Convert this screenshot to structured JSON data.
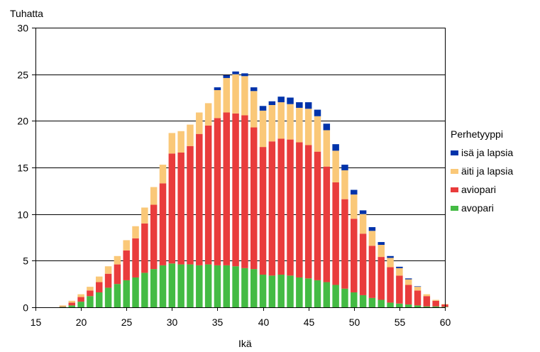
{
  "chart_data": {
    "type": "bar",
    "stacked": true,
    "ylabel": "Tuhatta",
    "xlabel": "Ikä",
    "ylim": [
      0,
      30
    ],
    "xlim": [
      15,
      60
    ],
    "yticks": [
      "0",
      "5",
      "10",
      "15",
      "20",
      "25",
      "30"
    ],
    "xticks": [
      "15",
      "20",
      "25",
      "30",
      "35",
      "40",
      "45",
      "50",
      "55",
      "60"
    ],
    "grid": true,
    "legend_position": "right",
    "legend_title": "Perhetyyppi",
    "x": [
      18,
      19,
      20,
      21,
      22,
      23,
      24,
      25,
      26,
      27,
      28,
      29,
      30,
      31,
      32,
      33,
      34,
      35,
      36,
      37,
      38,
      39,
      40,
      41,
      42,
      43,
      44,
      45,
      46,
      47,
      48,
      49,
      50,
      51,
      52,
      53,
      54,
      55,
      56,
      57,
      58,
      59,
      60
    ],
    "series": [
      {
        "name": "avopari",
        "color": "#44bb44",
        "values": [
          0.05,
          0.2,
          0.6,
          1.2,
          1.6,
          2.1,
          2.5,
          2.9,
          3.2,
          3.7,
          4.1,
          4.5,
          4.7,
          4.6,
          4.6,
          4.5,
          4.6,
          4.5,
          4.5,
          4.4,
          4.2,
          4.1,
          3.5,
          3.4,
          3.5,
          3.4,
          3.2,
          3.1,
          2.9,
          2.7,
          2.4,
          2.0,
          1.6,
          1.3,
          1.0,
          0.8,
          0.5,
          0.4,
          0.3,
          0.2,
          0.1,
          0.1,
          0.05
        ]
      },
      {
        "name": "aviopari",
        "color": "#e93c3c",
        "values": [
          0.05,
          0.3,
          0.5,
          0.6,
          1.1,
          1.5,
          2.1,
          3.2,
          4.2,
          5.3,
          6.9,
          8.8,
          11.8,
          12.0,
          12.7,
          14.1,
          14.9,
          15.8,
          16.4,
          16.4,
          16.4,
          15.2,
          13.7,
          14.4,
          14.6,
          14.6,
          14.5,
          14.3,
          13.8,
          12.4,
          11.0,
          9.6,
          7.9,
          6.6,
          5.6,
          4.6,
          3.8,
          3.0,
          2.1,
          1.6,
          1.1,
          0.6,
          0.25
        ]
      },
      {
        "name": "äiti ja lapsia",
        "color": "#fac878",
        "values": [
          0.1,
          0.2,
          0.3,
          0.4,
          0.6,
          0.8,
          0.9,
          1.1,
          1.3,
          1.7,
          1.9,
          2.0,
          2.2,
          2.3,
          2.3,
          2.3,
          2.4,
          3.0,
          3.7,
          4.2,
          4.2,
          3.9,
          3.9,
          3.9,
          3.9,
          3.8,
          3.7,
          3.9,
          3.8,
          3.9,
          3.4,
          3.1,
          2.6,
          2.1,
          1.6,
          1.3,
          1.0,
          0.8,
          0.6,
          0.4,
          0.2,
          0.1,
          0.05
        ]
      },
      {
        "name": "isä ja lapsia",
        "color": "#0033aa",
        "values": [
          0,
          0,
          0,
          0,
          0,
          0,
          0,
          0,
          0,
          0,
          0,
          0,
          0,
          0,
          0,
          0,
          0,
          0.3,
          0.3,
          0.3,
          0.3,
          0.4,
          0.5,
          0.4,
          0.6,
          0.7,
          0.6,
          0.7,
          0.7,
          0.7,
          0.7,
          0.6,
          0.5,
          0.4,
          0.4,
          0.3,
          0.2,
          0.15,
          0.1,
          0.05,
          0,
          0,
          0
        ]
      }
    ]
  }
}
